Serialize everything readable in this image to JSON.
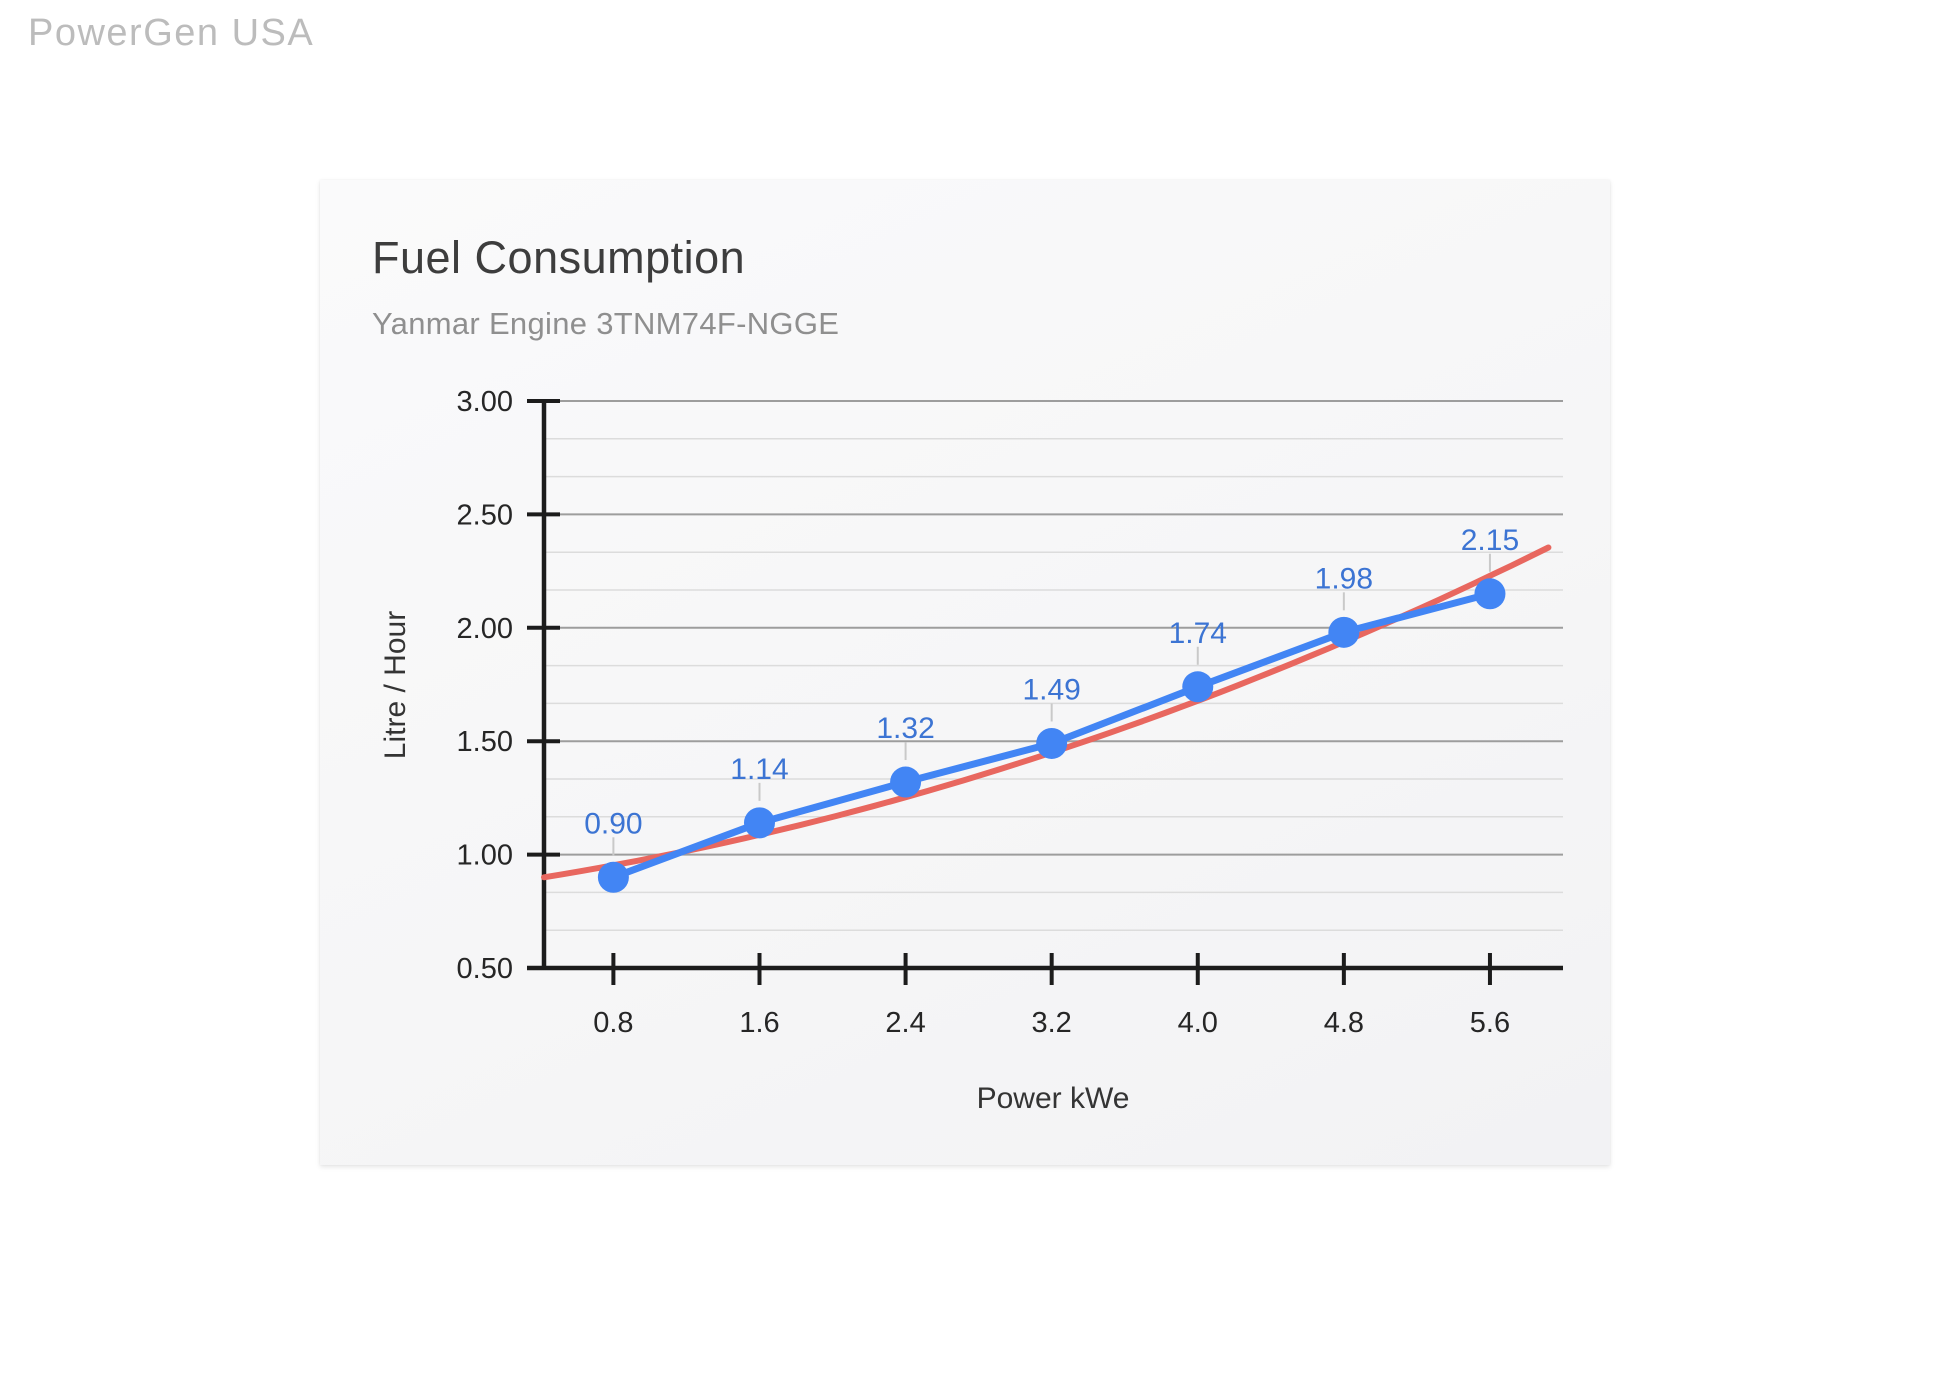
{
  "watermark": {
    "text": "PowerGen USA"
  },
  "chart": {
    "title": "Fuel Consumption",
    "subtitle": "Yanmar Engine 3TNM74F-NGGE"
  },
  "chart_data": {
    "type": "line",
    "title": "Fuel Consumption",
    "subtitle": "Yanmar Engine 3TNM74F-NGGE",
    "xlabel": "Power kWe",
    "ylabel": "Litre / Hour",
    "x": [
      0.8,
      1.6,
      2.4,
      3.2,
      4.0,
      4.8,
      5.6
    ],
    "x_tick_labels": [
      "0.8",
      "1.6",
      "2.4",
      "3.2",
      "4.0",
      "4.8",
      "5.6"
    ],
    "series": [
      {
        "name": "Fuel consumption",
        "values": [
          0.9,
          1.14,
          1.32,
          1.49,
          1.74,
          1.98,
          2.15
        ],
        "labels": [
          "0.90",
          "1.14",
          "1.32",
          "1.49",
          "1.74",
          "1.98",
          "2.15"
        ],
        "color": "#4285f4"
      }
    ],
    "trendline": {
      "type": "polynomial",
      "degree": 2,
      "coeffs": [
        0.8498,
        0.1093,
        0.02446
      ],
      "x_start": 0.42,
      "x_end": 5.96,
      "color": "#e8675f"
    },
    "xlim": [
      0.42,
      6.0
    ],
    "ylim": [
      0.5,
      3.0
    ],
    "y_ticks": [
      0.5,
      1.0,
      1.5,
      2.0,
      2.5,
      3.0
    ],
    "y_tick_labels": [
      "0.50",
      "1.00",
      "1.50",
      "2.00",
      "2.50",
      "3.00"
    ],
    "y_minor_divisions": 3,
    "grid": true,
    "legend": "none",
    "data_label_color": "#3c74d3",
    "leader_line_color": "#c9c9c9",
    "axis_color": "#1c1c1c",
    "grid_major_color": "#9d9d9d",
    "grid_minor_color": "#dcdcdc"
  }
}
